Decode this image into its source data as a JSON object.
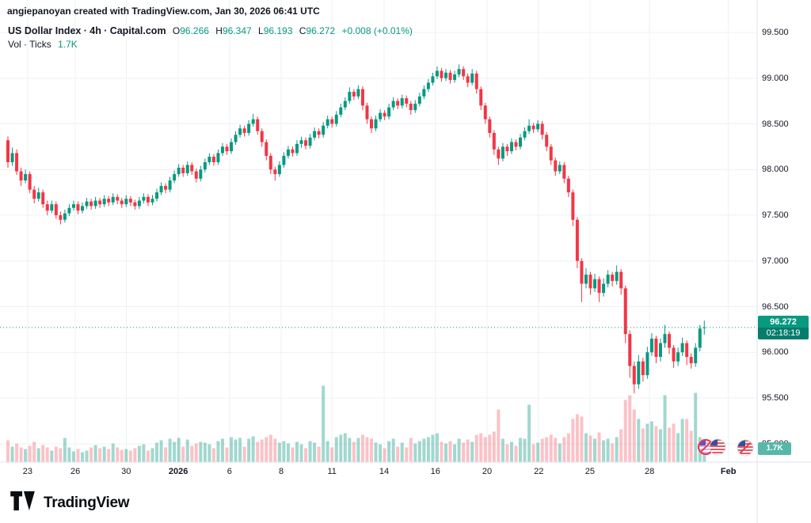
{
  "attribution": "angiepanoyan created with TradingView.com, Jan 30, 2026 06:41 UTC",
  "legend": {
    "title": {
      "symbol": "US Dollar Index",
      "sep": "·",
      "interval": "4h",
      "exchange": "Capital.com"
    },
    "ohlc": [
      {
        "label": "O",
        "value": "96.266"
      },
      {
        "label": "H",
        "value": "96.347"
      },
      {
        "label": "L",
        "value": "96.193"
      },
      {
        "label": "C",
        "value": "96.272"
      }
    ],
    "change": "+0.008 (+0.01%)",
    "vol": {
      "label": "Vol",
      "sep": "·",
      "source": "Ticks",
      "value": "1.7K"
    }
  },
  "price_badge": {
    "price": "96.272",
    "countdown": "02:18:19"
  },
  "volume_badge": "1.7K",
  "footer": {
    "logo_text": "TradingView"
  },
  "icons": {
    "left_pair": [
      "us-flag-crossed-icon",
      "us-flag-icon"
    ],
    "right": "us-flag-icon"
  },
  "colors": {
    "up": "#089981",
    "down": "#f23645",
    "grid": "#eef1f6",
    "axis_border": "#e0e3eb",
    "axis_text": "#131722",
    "accent": "#089981"
  },
  "chart_data": {
    "type": "candlestick",
    "title": "US Dollar Index · 4h · Capital.com",
    "volume_unit": "Ticks",
    "current_price": 96.272,
    "last": {
      "open": 96.266,
      "high": 96.347,
      "low": 96.193,
      "close": 96.272,
      "change": "+0.008 (+0.01%)",
      "volume": "1.7K"
    },
    "y_axis_range": [
      94.8,
      99.65
    ],
    "price_ticks": [
      {
        "value": 99.5,
        "label": "99.500"
      },
      {
        "value": 99.0,
        "label": "99.000"
      },
      {
        "value": 98.5,
        "label": "98.500"
      },
      {
        "value": 98.0,
        "label": "98.000"
      },
      {
        "value": 97.5,
        "label": "97.500"
      },
      {
        "value": 97.0,
        "label": "97.000"
      },
      {
        "value": 96.5,
        "label": "96.500"
      },
      {
        "value": 96.0,
        "label": "96.000"
      },
      {
        "value": 95.5,
        "label": "95.500"
      },
      {
        "value": 95.0,
        "label": "95.000"
      }
    ],
    "x_ticks": [
      {
        "label": "23",
        "i": 4.5
      },
      {
        "label": "26",
        "i": 15.4
      },
      {
        "label": "30",
        "i": 27
      },
      {
        "label": "2026",
        "i": 38.9,
        "major": true
      },
      {
        "label": "6",
        "i": 50.6
      },
      {
        "label": "8",
        "i": 62.4
      },
      {
        "label": "11",
        "i": 74
      },
      {
        "label": "14",
        "i": 85.9
      },
      {
        "label": "16",
        "i": 97.6
      },
      {
        "label": "20",
        "i": 109.4
      },
      {
        "label": "22",
        "i": 121.2
      },
      {
        "label": "25",
        "i": 132.9
      },
      {
        "label": "28",
        "i": 146.5
      },
      {
        "label": "Feb",
        "i": 164.5,
        "major": true
      }
    ],
    "candles": [
      [
        98.32,
        98.36,
        98.02,
        98.08,
        2700
      ],
      [
        98.08,
        98.24,
        98.04,
        98.18,
        1900
      ],
      [
        98.18,
        98.22,
        97.94,
        97.98,
        2300
      ],
      [
        97.98,
        98.02,
        97.82,
        97.88,
        1800
      ],
      [
        97.88,
        98.0,
        97.85,
        97.95,
        1600
      ],
      [
        97.95,
        97.98,
        97.74,
        97.78,
        2000
      ],
      [
        97.78,
        97.82,
        97.63,
        97.68,
        2500
      ],
      [
        97.68,
        97.8,
        97.65,
        97.75,
        1700
      ],
      [
        97.75,
        97.78,
        97.58,
        97.62,
        2100
      ],
      [
        97.62,
        97.66,
        97.5,
        97.55,
        1800
      ],
      [
        97.55,
        97.66,
        97.52,
        97.62,
        1400
      ],
      [
        97.62,
        97.65,
        97.46,
        97.5,
        1900
      ],
      [
        97.5,
        97.54,
        97.4,
        97.45,
        1700
      ],
      [
        97.45,
        97.56,
        97.42,
        97.52,
        3000
      ],
      [
        97.52,
        97.62,
        97.49,
        97.58,
        1800
      ],
      [
        97.58,
        97.66,
        97.55,
        97.62,
        1300
      ],
      [
        97.62,
        97.65,
        97.51,
        97.55,
        1600
      ],
      [
        97.55,
        97.64,
        97.52,
        97.6,
        1200
      ],
      [
        97.6,
        97.69,
        97.57,
        97.65,
        1400
      ],
      [
        97.65,
        97.68,
        97.56,
        97.6,
        1800
      ],
      [
        97.6,
        97.7,
        97.57,
        97.66,
        2100
      ],
      [
        97.66,
        97.69,
        97.58,
        97.62,
        1700
      ],
      [
        97.62,
        97.72,
        97.59,
        97.68,
        1900
      ],
      [
        97.68,
        97.71,
        97.6,
        97.64,
        1600
      ],
      [
        97.64,
        97.74,
        97.61,
        97.7,
        2300
      ],
      [
        97.7,
        97.73,
        97.62,
        97.66,
        1800
      ],
      [
        97.66,
        97.69,
        97.58,
        97.62,
        1500
      ],
      [
        97.62,
        97.72,
        97.59,
        97.68,
        1600
      ],
      [
        97.68,
        97.71,
        97.6,
        97.64,
        1400
      ],
      [
        97.64,
        97.67,
        97.56,
        97.6,
        1700
      ],
      [
        97.6,
        97.7,
        97.57,
        97.66,
        2000
      ],
      [
        97.66,
        97.74,
        97.63,
        97.7,
        2200
      ],
      [
        97.7,
        97.73,
        97.6,
        97.64,
        1400
      ],
      [
        97.64,
        97.72,
        97.61,
        97.68,
        1700
      ],
      [
        97.68,
        97.79,
        97.65,
        97.75,
        2400
      ],
      [
        97.75,
        97.86,
        97.72,
        97.82,
        2700
      ],
      [
        97.82,
        97.85,
        97.74,
        97.78,
        1800
      ],
      [
        97.78,
        97.92,
        97.75,
        97.88,
        2900
      ],
      [
        97.88,
        97.99,
        97.85,
        97.95,
        2500
      ],
      [
        97.95,
        98.06,
        97.92,
        98.02,
        3000
      ],
      [
        98.02,
        98.05,
        97.92,
        97.96,
        1900
      ],
      [
        97.96,
        98.09,
        97.93,
        98.05,
        2800
      ],
      [
        98.05,
        98.08,
        97.94,
        97.98,
        2000
      ],
      [
        97.98,
        98.01,
        97.86,
        97.9,
        2300
      ],
      [
        97.9,
        98.04,
        97.87,
        98.0,
        2500
      ],
      [
        98.0,
        98.12,
        97.97,
        98.08,
        2400
      ],
      [
        98.08,
        98.18,
        98.05,
        98.14,
        2200
      ],
      [
        98.14,
        98.17,
        98.04,
        98.08,
        1700
      ],
      [
        98.08,
        98.22,
        98.05,
        98.18,
        2600
      ],
      [
        98.18,
        98.29,
        98.15,
        98.25,
        2900
      ],
      [
        98.25,
        98.28,
        98.16,
        98.2,
        1800
      ],
      [
        98.2,
        98.34,
        98.17,
        98.3,
        3100
      ],
      [
        98.3,
        98.42,
        98.27,
        98.38,
        2800
      ],
      [
        98.38,
        98.49,
        98.35,
        98.45,
        3000
      ],
      [
        98.45,
        98.48,
        98.36,
        98.4,
        1900
      ],
      [
        98.4,
        98.54,
        98.37,
        98.5,
        2900
      ],
      [
        98.5,
        98.61,
        98.47,
        98.55,
        3200
      ],
      [
        98.55,
        98.58,
        98.38,
        98.42,
        2500
      ],
      [
        98.42,
        98.45,
        98.25,
        98.3,
        2800
      ],
      [
        98.3,
        98.33,
        98.1,
        98.15,
        3100
      ],
      [
        98.15,
        98.18,
        97.95,
        98.0,
        3400
      ],
      [
        98.0,
        98.03,
        97.88,
        97.95,
        2900
      ],
      [
        97.95,
        98.09,
        97.92,
        98.05,
        2400
      ],
      [
        98.05,
        98.19,
        98.02,
        98.15,
        2600
      ],
      [
        98.15,
        98.26,
        98.12,
        98.22,
        2300
      ],
      [
        98.22,
        98.25,
        98.14,
        98.18,
        1800
      ],
      [
        98.18,
        98.32,
        98.15,
        98.28,
        2500
      ],
      [
        98.28,
        98.36,
        98.24,
        98.32,
        2200
      ],
      [
        98.32,
        98.35,
        98.22,
        98.26,
        1700
      ],
      [
        98.26,
        98.39,
        98.23,
        98.35,
        2600
      ],
      [
        98.35,
        98.46,
        98.32,
        98.42,
        2400
      ],
      [
        98.42,
        98.45,
        98.34,
        98.38,
        1900
      ],
      [
        98.38,
        98.52,
        98.35,
        98.48,
        9600
      ],
      [
        98.48,
        98.59,
        98.45,
        98.55,
        2600
      ],
      [
        98.55,
        98.58,
        98.46,
        98.5,
        1800
      ],
      [
        98.5,
        98.64,
        98.47,
        98.6,
        3100
      ],
      [
        98.6,
        98.72,
        98.57,
        98.68,
        3400
      ],
      [
        98.68,
        98.79,
        98.65,
        98.75,
        3600
      ],
      [
        98.75,
        98.9,
        98.72,
        98.85,
        3000
      ],
      [
        98.85,
        98.88,
        98.76,
        98.8,
        2500
      ],
      [
        98.8,
        98.92,
        98.77,
        98.88,
        3000
      ],
      [
        98.88,
        98.91,
        98.65,
        98.7,
        3400
      ],
      [
        98.7,
        98.73,
        98.5,
        98.55,
        3100
      ],
      [
        98.55,
        98.58,
        98.4,
        98.45,
        2900
      ],
      [
        98.45,
        98.59,
        98.42,
        98.55,
        2400
      ],
      [
        98.55,
        98.66,
        98.52,
        98.62,
        2200
      ],
      [
        98.62,
        98.65,
        98.54,
        98.58,
        1700
      ],
      [
        98.58,
        98.72,
        98.55,
        98.68,
        2600
      ],
      [
        98.68,
        98.79,
        98.65,
        98.75,
        2900
      ],
      [
        98.75,
        98.78,
        98.66,
        98.7,
        1900
      ],
      [
        98.7,
        98.82,
        98.67,
        98.78,
        2400
      ],
      [
        98.78,
        98.81,
        98.68,
        98.72,
        1800
      ],
      [
        98.72,
        98.75,
        98.6,
        98.65,
        3000
      ],
      [
        98.65,
        98.76,
        98.62,
        98.72,
        2300
      ],
      [
        98.72,
        98.84,
        98.69,
        98.8,
        2600
      ],
      [
        98.8,
        98.92,
        98.77,
        98.88,
        2900
      ],
      [
        98.88,
        98.99,
        98.85,
        98.95,
        3100
      ],
      [
        98.95,
        99.06,
        98.92,
        99.02,
        3400
      ],
      [
        99.02,
        99.13,
        98.99,
        99.08,
        3600
      ],
      [
        99.08,
        99.11,
        98.96,
        99.0,
        2500
      ],
      [
        99.0,
        99.1,
        98.97,
        99.06,
        2300
      ],
      [
        99.06,
        99.09,
        98.94,
        98.98,
        2600
      ],
      [
        98.98,
        99.08,
        98.95,
        99.04,
        2200
      ],
      [
        99.04,
        99.15,
        99.01,
        99.1,
        2900
      ],
      [
        99.1,
        99.13,
        98.98,
        99.02,
        2400
      ],
      [
        99.02,
        99.05,
        98.9,
        98.95,
        2800
      ],
      [
        98.95,
        99.1,
        98.92,
        99.05,
        2500
      ],
      [
        99.05,
        99.08,
        98.83,
        98.88,
        3400
      ],
      [
        98.88,
        98.91,
        98.65,
        98.7,
        3600
      ],
      [
        98.7,
        98.73,
        98.5,
        98.55,
        3100
      ],
      [
        98.55,
        98.58,
        98.35,
        98.4,
        3400
      ],
      [
        98.4,
        98.43,
        98.16,
        98.22,
        3800
      ],
      [
        98.22,
        98.25,
        98.05,
        98.12,
        6600
      ],
      [
        98.12,
        98.29,
        98.09,
        98.25,
        2900
      ],
      [
        98.25,
        98.28,
        98.15,
        98.2,
        2200
      ],
      [
        98.2,
        98.34,
        98.17,
        98.3,
        2500
      ],
      [
        98.3,
        98.33,
        98.21,
        98.25,
        2000
      ],
      [
        98.25,
        98.39,
        98.22,
        98.35,
        3000
      ],
      [
        98.35,
        98.46,
        98.32,
        98.42,
        2900
      ],
      [
        98.42,
        98.55,
        98.39,
        98.48,
        7200
      ],
      [
        98.48,
        98.51,
        98.4,
        98.44,
        2200
      ],
      [
        98.44,
        98.54,
        98.41,
        98.5,
        2400
      ],
      [
        98.5,
        98.53,
        98.33,
        98.38,
        2900
      ],
      [
        98.38,
        98.41,
        98.2,
        98.25,
        3100
      ],
      [
        98.25,
        98.28,
        98.05,
        98.1,
        3400
      ],
      [
        98.1,
        98.13,
        97.93,
        97.98,
        3000
      ],
      [
        97.98,
        98.09,
        97.95,
        98.05,
        2300
      ],
      [
        98.05,
        98.08,
        97.85,
        97.9,
        3100
      ],
      [
        97.9,
        97.93,
        97.7,
        97.75,
        3600
      ],
      [
        97.75,
        97.78,
        97.38,
        97.45,
        5400
      ],
      [
        97.45,
        97.48,
        96.92,
        97.0,
        6000
      ],
      [
        97.0,
        97.03,
        96.55,
        96.75,
        5700
      ],
      [
        96.75,
        96.92,
        96.7,
        96.85,
        3600
      ],
      [
        96.85,
        96.88,
        96.63,
        96.7,
        3300
      ],
      [
        96.7,
        96.86,
        96.66,
        96.8,
        2900
      ],
      [
        96.8,
        96.83,
        96.55,
        96.65,
        3700
      ],
      [
        96.65,
        96.81,
        96.61,
        96.75,
        2700
      ],
      [
        96.75,
        96.9,
        96.71,
        96.85,
        2900
      ],
      [
        96.85,
        96.88,
        96.72,
        96.78,
        2300
      ],
      [
        96.78,
        96.95,
        96.74,
        96.88,
        3100
      ],
      [
        96.88,
        96.91,
        96.63,
        96.7,
        4100
      ],
      [
        96.7,
        96.73,
        96.1,
        96.2,
        7800
      ],
      [
        96.2,
        96.24,
        95.72,
        95.85,
        8400
      ],
      [
        95.85,
        95.9,
        95.55,
        95.65,
        6600
      ],
      [
        95.65,
        95.97,
        95.6,
        95.9,
        5400
      ],
      [
        95.9,
        95.94,
        95.68,
        95.75,
        4200
      ],
      [
        95.75,
        96.06,
        95.71,
        96.0,
        4800
      ],
      [
        96.0,
        96.21,
        95.96,
        96.15,
        5100
      ],
      [
        96.15,
        96.18,
        95.88,
        95.95,
        4500
      ],
      [
        95.95,
        96.15,
        95.9,
        96.1,
        4100
      ],
      [
        96.1,
        96.3,
        96.05,
        96.2,
        8400
      ],
      [
        96.2,
        96.23,
        95.98,
        96.05,
        4300
      ],
      [
        96.05,
        96.08,
        95.83,
        95.9,
        4800
      ],
      [
        95.9,
        96.05,
        95.85,
        96.0,
        3600
      ],
      [
        96.0,
        96.16,
        95.96,
        96.1,
        5400
      ],
      [
        96.1,
        96.13,
        95.86,
        95.95,
        5400
      ],
      [
        95.95,
        95.99,
        95.82,
        95.88,
        3900
      ],
      [
        95.88,
        96.1,
        95.84,
        96.05,
        8700
      ],
      [
        96.05,
        96.3,
        96.01,
        96.26,
        3100
      ],
      [
        96.266,
        96.347,
        96.193,
        96.272,
        1700
      ]
    ]
  }
}
